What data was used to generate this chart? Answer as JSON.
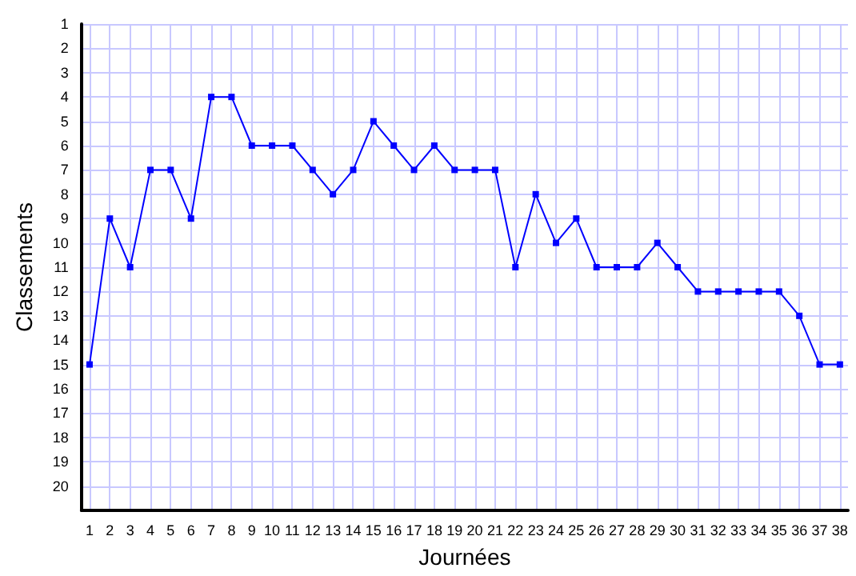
{
  "chart_data": {
    "type": "line",
    "xlabel": "Journées",
    "ylabel": "Classements",
    "x": [
      1,
      2,
      3,
      4,
      5,
      6,
      7,
      8,
      9,
      10,
      11,
      12,
      13,
      14,
      15,
      16,
      17,
      18,
      19,
      20,
      21,
      22,
      23,
      24,
      25,
      26,
      27,
      28,
      29,
      30,
      31,
      32,
      33,
      34,
      35,
      36,
      37,
      38
    ],
    "series": [
      {
        "color": "#0000ff",
        "values": [
          15,
          9,
          11,
          7,
          7,
          9,
          4,
          4,
          6,
          6,
          6,
          7,
          8,
          7,
          5,
          6,
          7,
          6,
          7,
          7,
          7,
          11,
          8,
          10,
          9,
          11,
          11,
          11,
          10,
          11,
          12,
          12,
          12,
          12,
          12,
          13,
          15,
          15
        ]
      }
    ],
    "xlim": [
      0.6,
      38.4
    ],
    "xticks": [
      1,
      2,
      3,
      4,
      5,
      6,
      7,
      8,
      9,
      10,
      11,
      12,
      13,
      14,
      15,
      16,
      17,
      18,
      19,
      20,
      21,
      22,
      23,
      24,
      25,
      26,
      27,
      28,
      29,
      30,
      31,
      32,
      33,
      34,
      35,
      36,
      37,
      38
    ],
    "ylim": [
      21,
      1
    ],
    "yticks": [
      1,
      2,
      3,
      4,
      5,
      6,
      7,
      8,
      9,
      10,
      11,
      12,
      13,
      14,
      15,
      16,
      17,
      18,
      19,
      20
    ],
    "grid": true,
    "marker": "square",
    "line_style": "solid"
  }
}
